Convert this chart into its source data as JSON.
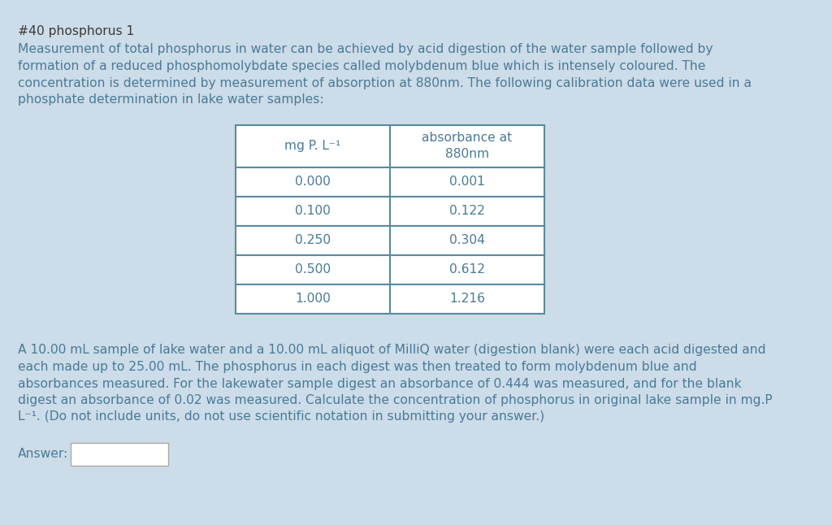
{
  "title": "#40 phosphorus 1",
  "paragraph1_lines": [
    "Measurement of total phosphorus in water can be achieved by acid digestion of the water sample followed by",
    "formation of a reduced phosphomolybdate species called molybdenum blue which is intensely coloured. The",
    "concentration is determined by measurement of absorption at 880nm. The following calibration data were used in a",
    "phosphate determination in lake water samples:"
  ],
  "col1_header": "mg P. L⁻¹",
  "col2_header": "absorbance at\n880nm",
  "table_data": [
    [
      "0.000",
      "0.001"
    ],
    [
      "0.100",
      "0.122"
    ],
    [
      "0.250",
      "0.304"
    ],
    [
      "0.500",
      "0.612"
    ],
    [
      "1.000",
      "1.216"
    ]
  ],
  "paragraph2_lines": [
    "A 10.00 mL sample of lake water and a 10.00 mL aliquot of MilliQ water (digestion blank) were each acid digested and",
    "each made up to 25.00 mL. The phosphorus in each digest was then treated to form molybdenum blue and",
    "absorbances measured. For the lakewater sample digest an absorbance of 0.444 was measured, and for the blank",
    "digest an absorbance of 0.02 was measured. Calculate the concentration of phosphorus in original lake sample in mg.P",
    "L⁻¹. (Do not include units, do not use scientific notation in submitting your answer.)"
  ],
  "answer_label": "Answer:",
  "bg_color": "#ccdce8",
  "text_color": "#4a7a96",
  "table_bg": "#ffffff",
  "table_border_color": "#5a8aa0",
  "title_color": "#3a3a3a",
  "body_font_size": 11.2,
  "title_font_size": 11.2,
  "table_font_size": 11.2
}
